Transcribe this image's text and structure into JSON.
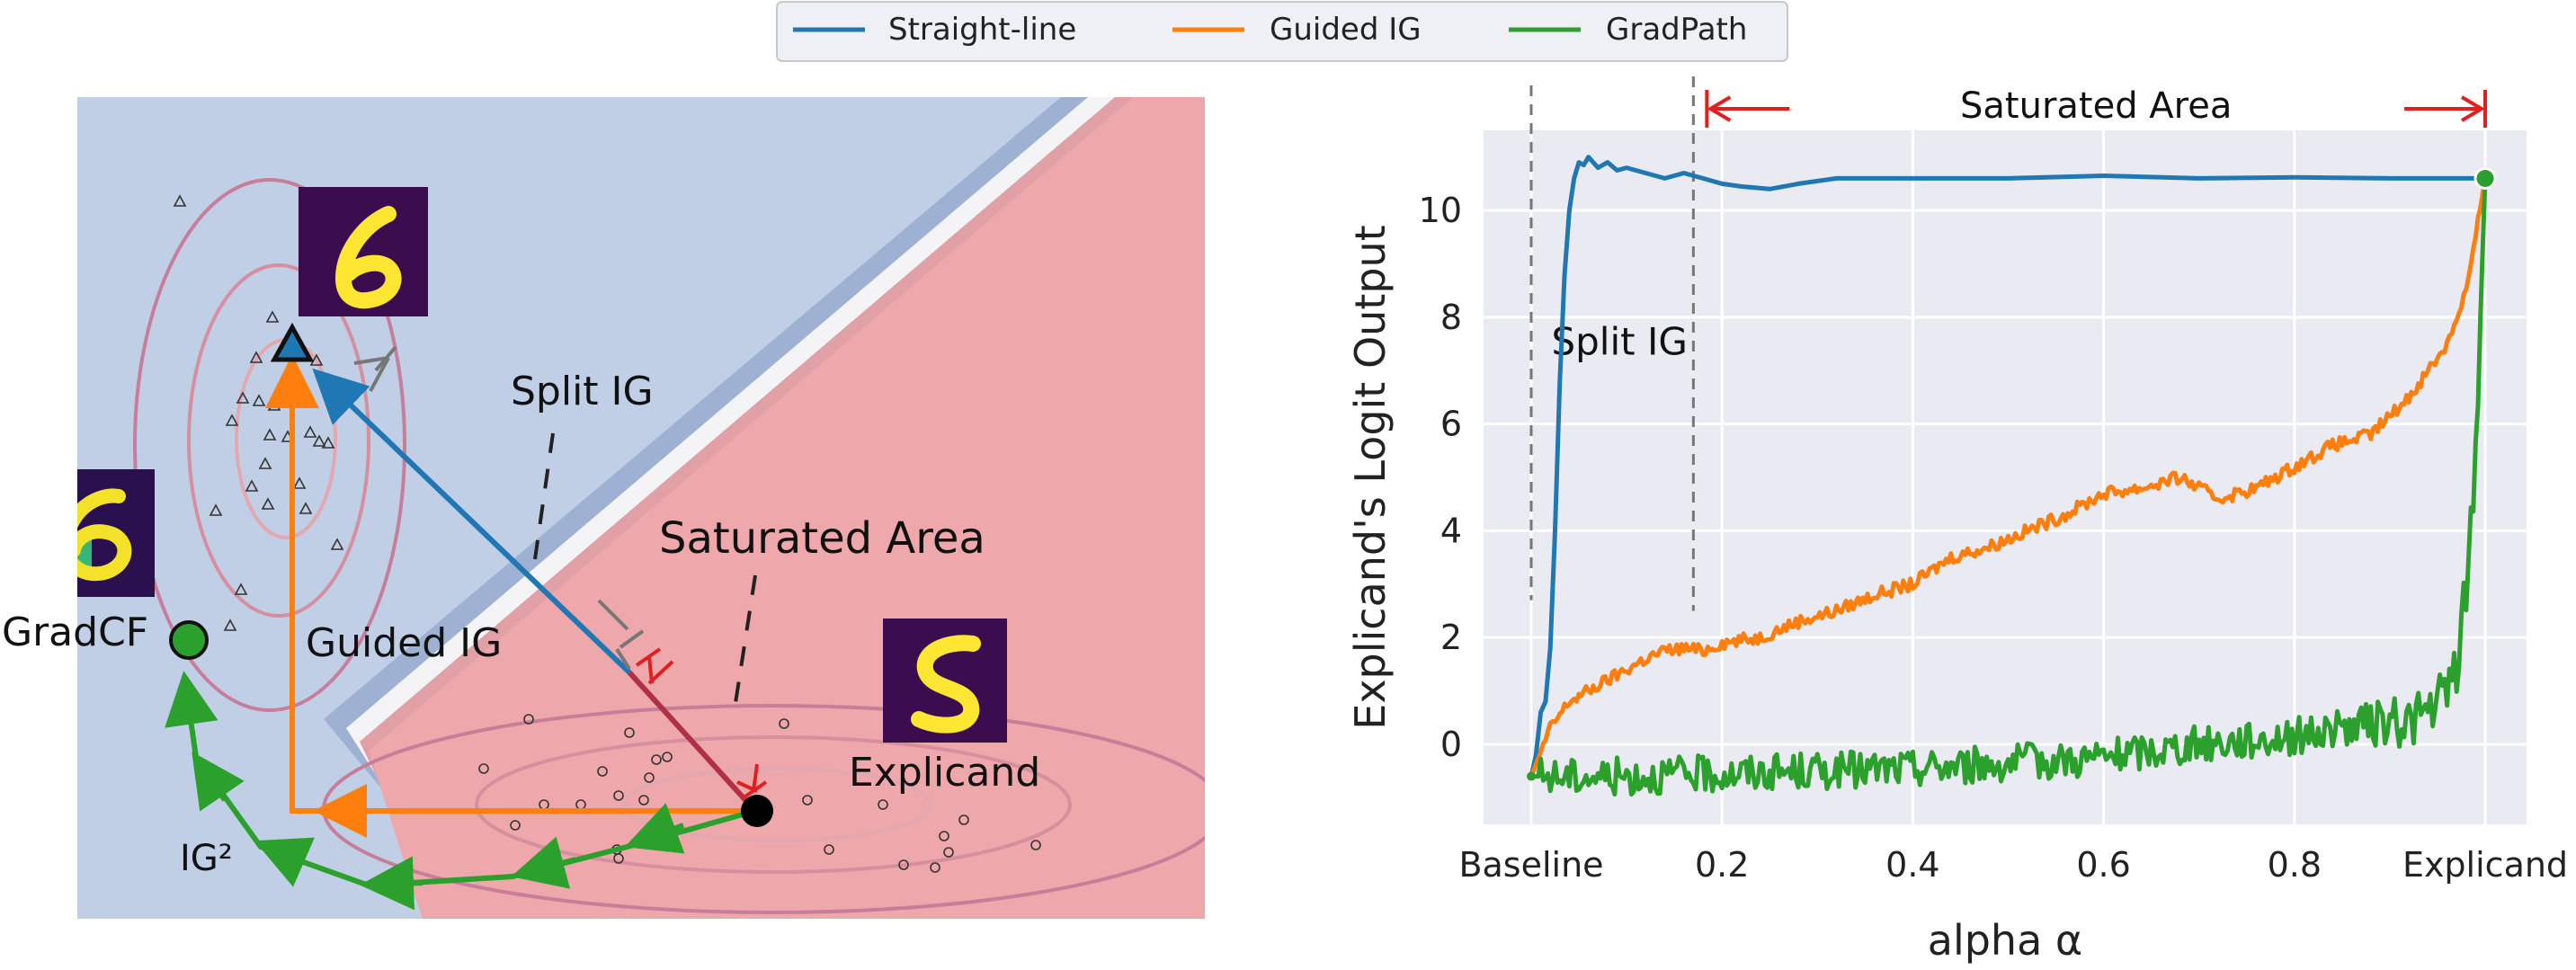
{
  "legend": {
    "items": [
      {
        "label": "Straight-line",
        "color": "#1f77b4"
      },
      {
        "label": "Guided IG",
        "color": "#ff7f0e"
      },
      {
        "label": "GradPath",
        "color": "#2ca02c"
      }
    ],
    "placement": "top-center"
  },
  "left_panel": {
    "labels": {
      "split_ig": "Split IG",
      "saturated_area": "Saturated Area",
      "explicand": "Explicand",
      "gradcf": "GradCF",
      "guided_ig": "Guided IG",
      "ig2": "IG²"
    },
    "colors": {
      "blue_region": "#c0cfe5",
      "red_region": "#eea7aa",
      "contour": "#c77e9a",
      "straight_line": "#1f77b4",
      "guided_ig": "#ff7f0e",
      "gradpath": "#2ca02c",
      "saturated_segment": "#b03045"
    }
  },
  "chart_data": {
    "type": "line",
    "title": "",
    "xlabel": "alpha α",
    "ylabel": "Explicand's Logit Output",
    "xlim": [
      0,
      1
    ],
    "ylim": [
      -1.5,
      11.5
    ],
    "xticks": [
      {
        "value": 0.0,
        "label": "Baseline"
      },
      {
        "value": 0.2,
        "label": "0.2"
      },
      {
        "value": 0.4,
        "label": "0.4"
      },
      {
        "value": 0.6,
        "label": "0.6"
      },
      {
        "value": 0.8,
        "label": "0.8"
      },
      {
        "value": 1.0,
        "label": "Explicand"
      }
    ],
    "yticks": [
      0,
      2,
      4,
      6,
      8,
      10
    ],
    "grid": true,
    "annotations": {
      "split_ig": {
        "text": "Split IG",
        "x_range": [
          0.0,
          0.17
        ]
      },
      "saturated_area": {
        "text": "Saturated Area",
        "x_range": [
          0.17,
          1.0
        ]
      }
    },
    "end_marker": {
      "x": 1.0,
      "y": 10.6
    },
    "series": [
      {
        "name": "Straight-line",
        "color": "#1f77b4",
        "x": [
          0.0,
          0.005,
          0.01,
          0.015,
          0.02,
          0.025,
          0.03,
          0.035,
          0.04,
          0.045,
          0.05,
          0.055,
          0.06,
          0.07,
          0.08,
          0.09,
          0.1,
          0.12,
          0.14,
          0.16,
          0.18,
          0.2,
          0.22,
          0.25,
          0.28,
          0.32,
          0.4,
          0.5,
          0.6,
          0.7,
          0.8,
          0.9,
          1.0
        ],
        "values": [
          -0.6,
          -0.2,
          0.6,
          0.8,
          1.8,
          4.0,
          6.8,
          8.8,
          10.0,
          10.6,
          10.9,
          10.85,
          11.0,
          10.8,
          10.9,
          10.75,
          10.8,
          10.7,
          10.6,
          10.7,
          10.6,
          10.5,
          10.45,
          10.4,
          10.5,
          10.6,
          10.6,
          10.6,
          10.65,
          10.6,
          10.62,
          10.6,
          10.6
        ]
      },
      {
        "name": "Guided IG",
        "color": "#ff7f0e",
        "x": [
          0.0,
          0.02,
          0.04,
          0.06,
          0.08,
          0.1,
          0.12,
          0.14,
          0.16,
          0.18,
          0.2,
          0.24,
          0.28,
          0.32,
          0.36,
          0.4,
          0.44,
          0.48,
          0.52,
          0.56,
          0.6,
          0.64,
          0.68,
          0.7,
          0.72,
          0.76,
          0.8,
          0.84,
          0.88,
          0.92,
          0.94,
          0.96,
          0.98,
          0.99,
          1.0
        ],
        "values": [
          -0.6,
          0.3,
          0.8,
          1.0,
          1.2,
          1.4,
          1.6,
          1.75,
          1.8,
          1.75,
          1.9,
          2.0,
          2.3,
          2.5,
          2.8,
          3.0,
          3.5,
          3.7,
          4.0,
          4.3,
          4.7,
          4.8,
          5.0,
          4.8,
          4.6,
          4.8,
          5.2,
          5.6,
          5.8,
          6.5,
          7.0,
          7.5,
          8.5,
          9.5,
          10.6
        ]
      },
      {
        "name": "GradPath",
        "color": "#2ca02c",
        "x": [
          0.0,
          0.1,
          0.2,
          0.3,
          0.4,
          0.5,
          0.6,
          0.7,
          0.8,
          0.85,
          0.9,
          0.92,
          0.94,
          0.96,
          0.97,
          0.98,
          0.985,
          0.99,
          0.995,
          1.0
        ],
        "values": [
          -0.6,
          -0.6,
          -0.55,
          -0.5,
          -0.45,
          -0.35,
          -0.25,
          0.0,
          0.15,
          0.3,
          0.4,
          0.45,
          0.6,
          0.9,
          1.5,
          2.8,
          4.0,
          5.5,
          8.0,
          10.6
        ]
      }
    ]
  }
}
